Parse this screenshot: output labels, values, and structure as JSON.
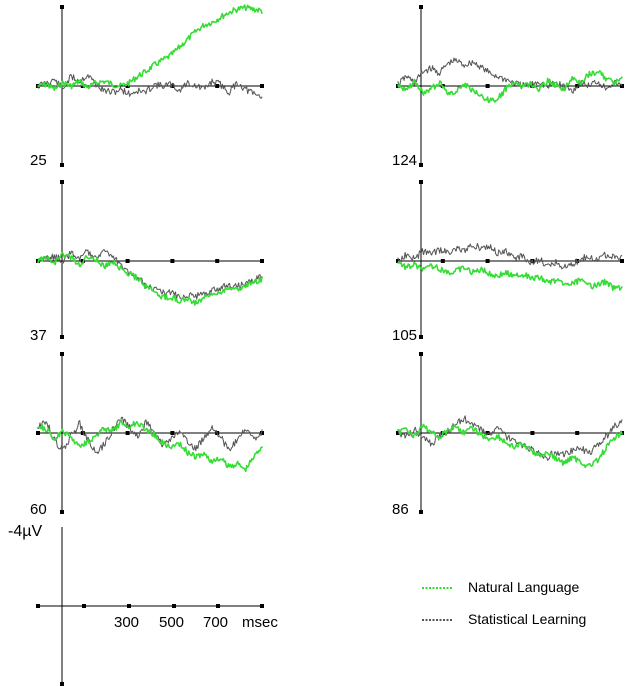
{
  "chart_data": {
    "type": "line",
    "description_axes": "Grid of ERP waveform panels; each panel has a vertical voltage axis and horizontal time axis with tick marks.",
    "x_unit": "msec",
    "y_unit": "-4µV",
    "scale_bar": {
      "voltage_label": "-4µV",
      "x_tick_labels": [
        "300",
        "500",
        "700"
      ],
      "x_unit_label": "msec"
    },
    "legend": {
      "position": "bottom-right",
      "entries": [
        {
          "name": "Natural Language",
          "color": "#33dd33"
        },
        {
          "name": "Statistical Learning",
          "color": "#555555"
        }
      ]
    },
    "series_colors": {
      "natural_language": "#33dd33",
      "statistical_learning": "#555555"
    },
    "panels": [
      {
        "label": "25",
        "natural_language": [
          0.0,
          0.1,
          -0.2,
          0.2,
          0.0,
          0.3,
          -0.1,
          0.2,
          0.3,
          0.1,
          0.0,
          0.2,
          0.6,
          0.9,
          1.3,
          1.6,
          1.9,
          2.4,
          2.9,
          3.4,
          3.8,
          4.0,
          4.3,
          4.6,
          4.8,
          4.9,
          4.8,
          4.7
        ],
        "statistical_learning": [
          0.0,
          0.2,
          0.4,
          -0.2,
          0.6,
          0.3,
          0.7,
          0.1,
          -0.3,
          -0.4,
          -0.2,
          -0.5,
          -0.3,
          -0.4,
          0.1,
          0.0,
          0.1,
          -0.3,
          0.2,
          0.0,
          -0.2,
          0.3,
          0.1,
          -0.4,
          0.2,
          -0.2,
          -0.5,
          -0.7
        ]
      },
      {
        "label": "124",
        "natural_language": [
          0.1,
          -0.3,
          0.3,
          -0.4,
          -0.2,
          0.2,
          -0.5,
          -0.3,
          0.1,
          -0.3,
          -0.6,
          -0.9,
          -0.8,
          -0.2,
          0.3,
          0.0,
          0.1,
          -0.2,
          0.3,
          0.1,
          -0.2,
          0.4,
          0.2,
          0.7,
          0.9,
          0.5,
          0.2,
          0.4
        ],
        "statistical_learning": [
          0.1,
          0.6,
          0.2,
          0.9,
          1.1,
          0.8,
          1.4,
          1.6,
          1.3,
          1.5,
          1.2,
          0.8,
          0.6,
          0.4,
          0.2,
          0.0,
          0.1,
          0.3,
          -0.1,
          0.2,
          0.0,
          -0.3,
          0.2,
          0.0,
          0.3,
          -0.1,
          0.2,
          0.0
        ]
      },
      {
        "label": "37",
        "natural_language": [
          0.0,
          0.2,
          -0.1,
          0.4,
          0.2,
          -0.2,
          0.3,
          0.1,
          -0.3,
          -0.1,
          -0.5,
          -0.8,
          -1.1,
          -1.6,
          -1.9,
          -2.3,
          -2.2,
          -2.5,
          -2.4,
          -2.6,
          -2.3,
          -2.1,
          -1.9,
          -1.6,
          -1.8,
          -1.5,
          -1.4,
          -1.1
        ],
        "statistical_learning": [
          0.0,
          0.1,
          0.3,
          0.0,
          0.5,
          0.2,
          0.6,
          0.3,
          0.7,
          0.2,
          -0.2,
          -0.7,
          -1.1,
          -1.5,
          -1.8,
          -2.0,
          -1.9,
          -2.3,
          -2.1,
          -2.2,
          -2.0,
          -1.8,
          -1.7,
          -1.5,
          -1.6,
          -1.4,
          -1.2,
          -1.0
        ]
      },
      {
        "label": "105",
        "natural_language": [
          0.0,
          -0.4,
          -0.2,
          -0.6,
          -0.3,
          -0.5,
          -0.8,
          -0.6,
          -0.4,
          -0.7,
          -0.5,
          -0.8,
          -0.9,
          -0.7,
          -1.0,
          -0.8,
          -1.1,
          -1.0,
          -1.3,
          -1.2,
          -1.5,
          -1.4,
          -1.2,
          -1.6,
          -1.5,
          -1.3,
          -1.7,
          -1.6
        ],
        "statistical_learning": [
          0.0,
          0.4,
          0.2,
          0.6,
          0.4,
          0.7,
          0.5,
          0.8,
          0.6,
          1.0,
          0.8,
          0.9,
          0.5,
          0.6,
          0.2,
          0.3,
          -0.1,
          0.1,
          -0.3,
          -0.1,
          -0.4,
          -0.2,
          0.1,
          0.3,
          0.0,
          0.4,
          0.2,
          0.3
        ]
      },
      {
        "label": "60",
        "natural_language": [
          0.5,
          0.2,
          -0.4,
          0.1,
          -0.3,
          -0.8,
          -0.5,
          -0.2,
          0.3,
          0.1,
          0.6,
          0.4,
          0.7,
          0.2,
          -0.1,
          -0.6,
          -0.9,
          -0.6,
          -1.2,
          -1.5,
          -1.3,
          -1.8,
          -1.6,
          -2.1,
          -1.9,
          -2.3,
          -1.5,
          -0.8
        ],
        "statistical_learning": [
          0.3,
          0.8,
          -0.5,
          -1.1,
          -0.2,
          0.6,
          -0.4,
          -1.3,
          -0.7,
          0.2,
          0.9,
          0.4,
          -0.3,
          0.7,
          0.2,
          -0.8,
          -0.4,
          0.1,
          -0.6,
          -1.0,
          -0.3,
          0.4,
          -0.2,
          -1.1,
          -0.5,
          0.2,
          -0.4,
          0.1
        ]
      },
      {
        "label": "86",
        "natural_language": [
          0.0,
          0.3,
          -0.2,
          0.4,
          0.1,
          -0.3,
          0.2,
          0.4,
          0.0,
          0.3,
          -0.1,
          -0.4,
          -0.2,
          -0.6,
          -0.9,
          -0.7,
          -1.1,
          -1.4,
          -1.2,
          -1.6,
          -1.9,
          -1.5,
          -1.8,
          -2.1,
          -1.7,
          -1.0,
          -0.4,
          0.1
        ],
        "statistical_learning": [
          0.0,
          -0.2,
          0.2,
          -0.3,
          -0.7,
          -0.2,
          0.1,
          0.6,
          0.9,
          0.5,
          0.2,
          -0.1,
          0.3,
          -0.2,
          -0.5,
          -0.8,
          -1.0,
          -1.3,
          -1.5,
          -1.2,
          -1.4,
          -1.1,
          -0.9,
          -1.3,
          -0.8,
          -0.3,
          0.4,
          0.7
        ]
      }
    ]
  }
}
